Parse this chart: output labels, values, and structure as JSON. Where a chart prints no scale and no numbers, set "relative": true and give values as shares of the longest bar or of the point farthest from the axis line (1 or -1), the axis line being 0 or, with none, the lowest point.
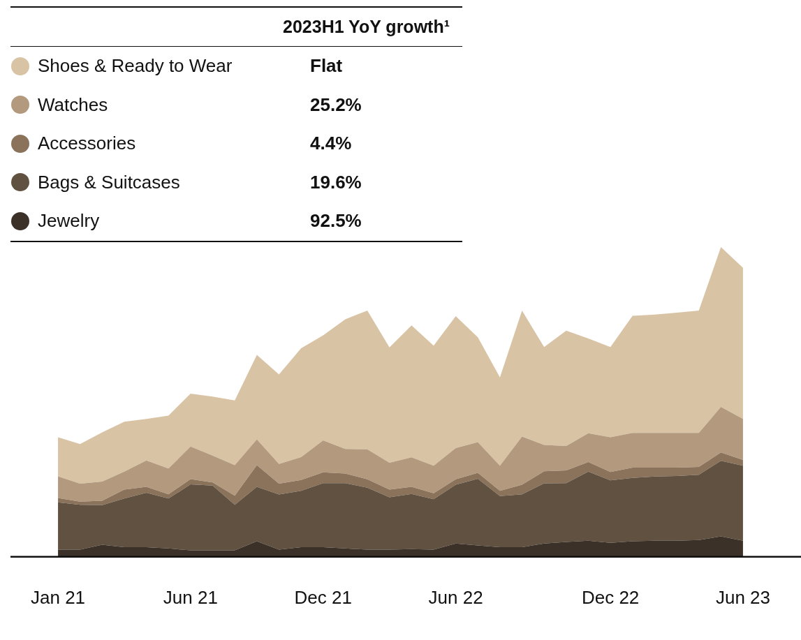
{
  "chart_data": {
    "type": "area",
    "stacked": true,
    "relative": true,
    "legend": "top left",
    "legend_title": "2023H1 YoY growth¹",
    "categories": [
      "Jan 21",
      null,
      null,
      null,
      null,
      null,
      "Jun 21",
      null,
      null,
      null,
      null,
      null,
      "Dec 21",
      null,
      null,
      null,
      null,
      null,
      "Jun 22",
      null,
      null,
      null,
      null,
      null,
      null,
      "Dec 22",
      null,
      null,
      null,
      null,
      null,
      "Jun 23"
    ],
    "series": [
      {
        "name": "Jewelry",
        "color": "#3b3128",
        "values": [
          0.023,
          0.023,
          0.039,
          0.031,
          0.031,
          0.027,
          0.021,
          0.021,
          0.021,
          0.05,
          0.023,
          0.031,
          0.031,
          0.027,
          0.023,
          0.023,
          0.025,
          0.023,
          0.043,
          0.037,
          0.031,
          0.031,
          0.043,
          0.048,
          0.052,
          0.045,
          0.05,
          0.052,
          0.052,
          0.054,
          0.066,
          0.052
        ]
      },
      {
        "name": "Bags & Suitcases",
        "color": "#615140",
        "values": [
          0.153,
          0.145,
          0.128,
          0.157,
          0.176,
          0.161,
          0.213,
          0.209,
          0.147,
          0.176,
          0.178,
          0.182,
          0.207,
          0.211,
          0.2,
          0.169,
          0.178,
          0.163,
          0.19,
          0.215,
          0.165,
          0.171,
          0.194,
          0.19,
          0.223,
          0.202,
          0.205,
          0.207,
          0.209,
          0.211,
          0.244,
          0.242
        ]
      },
      {
        "name": "Accessories",
        "color": "#8b735b",
        "values": [
          0.014,
          0.01,
          0.014,
          0.029,
          0.019,
          0.014,
          0.017,
          0.01,
          0.029,
          0.07,
          0.035,
          0.035,
          0.035,
          0.031,
          0.027,
          0.025,
          0.023,
          0.019,
          0.017,
          0.019,
          0.017,
          0.031,
          0.039,
          0.041,
          0.031,
          0.027,
          0.033,
          0.029,
          0.027,
          0.025,
          0.027,
          0.019
        ]
      },
      {
        "name": "Watches",
        "color": "#b39a7f",
        "values": [
          0.07,
          0.058,
          0.062,
          0.058,
          0.085,
          0.083,
          0.105,
          0.087,
          0.099,
          0.083,
          0.064,
          0.074,
          0.103,
          0.079,
          0.097,
          0.087,
          0.095,
          0.089,
          0.101,
          0.099,
          0.081,
          0.155,
          0.085,
          0.079,
          0.093,
          0.112,
          0.112,
          0.112,
          0.112,
          0.11,
          0.147,
          0.132
        ]
      },
      {
        "name": "Shoes & Ready to Wear",
        "color": "#d9c3a5",
        "values": [
          0.126,
          0.128,
          0.159,
          0.161,
          0.134,
          0.171,
          0.171,
          0.19,
          0.209,
          0.273,
          0.289,
          0.351,
          0.339,
          0.419,
          0.448,
          0.372,
          0.426,
          0.388,
          0.426,
          0.339,
          0.285,
          0.407,
          0.316,
          0.372,
          0.306,
          0.291,
          0.378,
          0.382,
          0.388,
          0.395,
          0.516,
          0.488
        ]
      }
    ],
    "annotations": [
      "92.5%",
      "19.6%",
      "4.4%",
      "25.2%",
      "Flat"
    ]
  }
}
